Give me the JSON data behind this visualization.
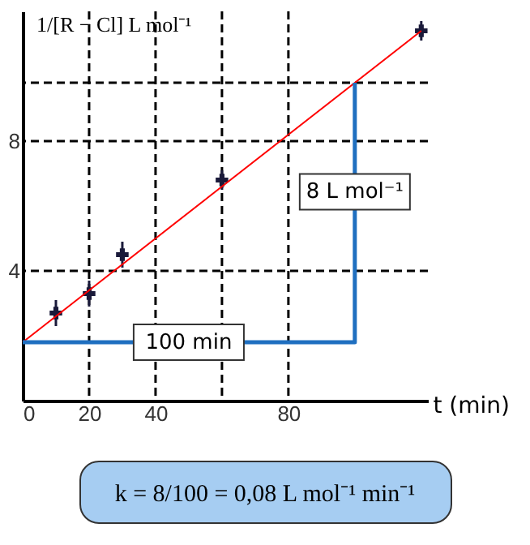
{
  "chart_data": {
    "type": "scatter",
    "xlabel": "t (min)",
    "ylabel": "1/[R − Cl] L mol⁻¹",
    "xlim": [
      0,
      122
    ],
    "ylim": [
      0,
      12
    ],
    "xticks": [
      0,
      20,
      40,
      80
    ],
    "yticks": [
      4,
      8
    ],
    "grid": false,
    "series": [
      {
        "marker": "cross",
        "color": "#1a1a3a",
        "x": [
          10,
          20,
          30,
          60,
          120
        ],
        "values": [
          2.7,
          3.3,
          4.5,
          6.8,
          11.4
        ],
        "errors": [
          0.4,
          0.4,
          0.4,
          0.3,
          0.3
        ]
      },
      {
        "type": "line",
        "color": "#ff0000",
        "x": [
          0,
          120
        ],
        "values": [
          1.8,
          11.4
        ]
      },
      {
        "type": "line",
        "color": "#1f6fc0",
        "x": [
          0,
          100,
          100
        ],
        "values": [
          1.8,
          1.8,
          9.8
        ]
      }
    ],
    "ref_lines": [
      {
        "axis": "x",
        "value": 20,
        "line_style": "dashed",
        "color": "#000000"
      },
      {
        "axis": "x",
        "value": 40,
        "line_style": "dashed",
        "color": "#000000"
      },
      {
        "axis": "x",
        "value": 60,
        "line_style": "dashed",
        "color": "#000000"
      },
      {
        "axis": "x",
        "value": 80,
        "line_style": "dashed",
        "color": "#000000"
      },
      {
        "axis": "y",
        "value": 4,
        "line_style": "dashed",
        "color": "#000000"
      },
      {
        "axis": "y",
        "value": 8,
        "line_style": "dashed",
        "color": "#000000"
      },
      {
        "axis": "y",
        "value": 9.8,
        "line_style": "dashed",
        "color": "#000000"
      }
    ],
    "annotations": [
      "100 min",
      "8 L mol⁻¹",
      "k = 8/100 = 0,08 L mol⁻¹ min⁻¹"
    ]
  }
}
